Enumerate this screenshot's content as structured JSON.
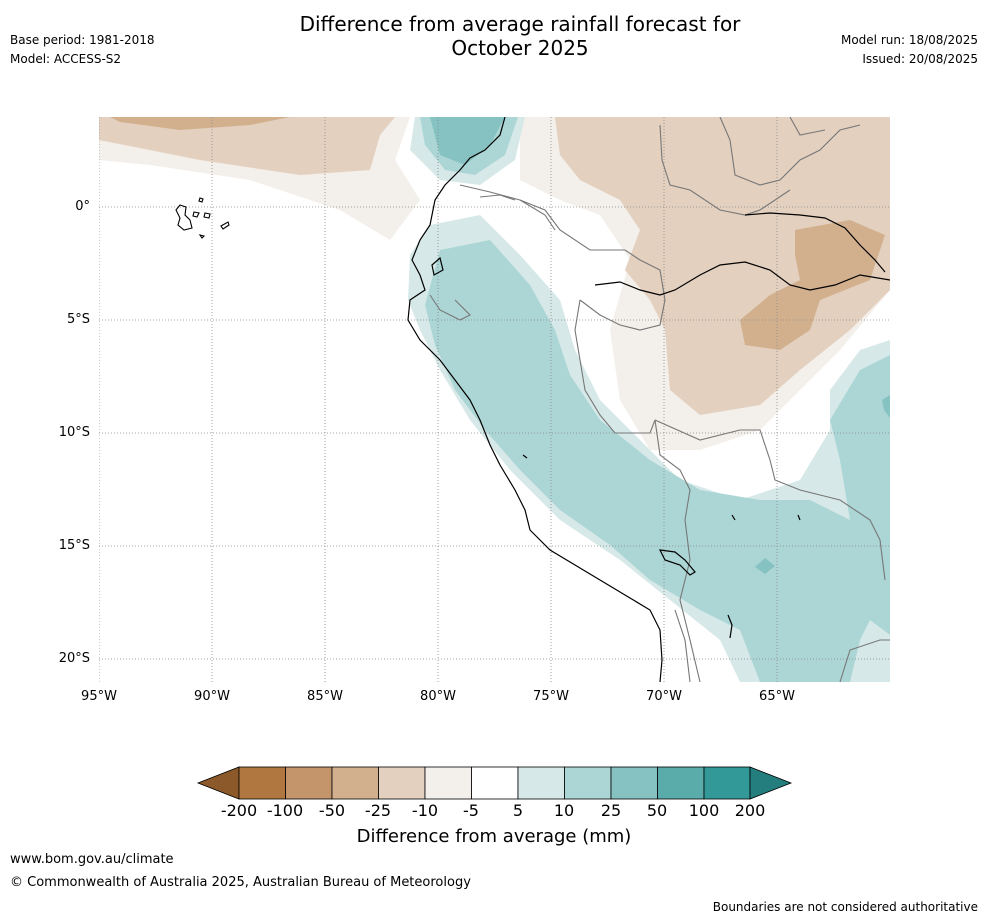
{
  "header": {
    "title_line1": "Difference from average rainfall forecast for",
    "title_line2": "October 2025",
    "base_period": "Base period: 1981-2018",
    "model": "Model: ACCESS-S2",
    "model_run": "Model run: 18/08/2025",
    "issued": "Issued: 20/08/2025"
  },
  "map": {
    "lat_labels": [
      "0°",
      "5°S",
      "10°S",
      "15°S",
      "20°S"
    ],
    "lon_labels": [
      "95°W",
      "90°W",
      "85°W",
      "80°W",
      "75°W",
      "70°W",
      "65°W"
    ]
  },
  "colorbar": {
    "title": "Difference from average (mm)",
    "tick_labels": [
      "-200",
      "-100",
      "-50",
      "-25",
      "-10",
      "-5",
      "5",
      "10",
      "25",
      "50",
      "100",
      "200"
    ],
    "colors": [
      "#8c5a2a",
      "#b07840",
      "#c4956a",
      "#d2b08e",
      "#e3d0bf",
      "#f3efea",
      "#ffffff",
      "#d6e9e8",
      "#acd6d5",
      "#85c2c1",
      "#5aacab",
      "#339998",
      "#237e7d"
    ]
  },
  "footer": {
    "website": "www.bom.gov.au/climate",
    "copyright": "© Commonwealth of Australia 2025, Australian Bureau of Meteorology",
    "disclaimer": "Boundaries are not considered authoritative"
  }
}
